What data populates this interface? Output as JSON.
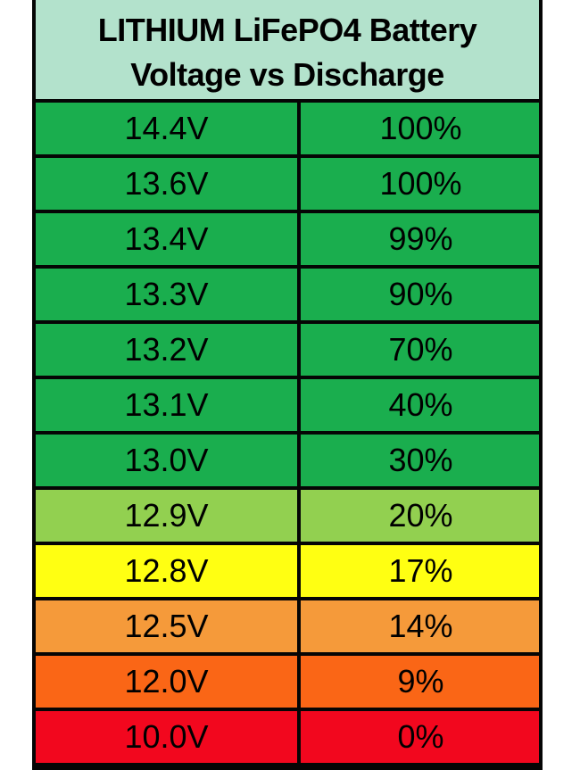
{
  "header": {
    "title_line1": "LITHIUM LiFePO4 Battery",
    "title_line2": "Voltage vs Discharge"
  },
  "colors": {
    "header_bg": "#b3e2cc",
    "dark_green": "#1aae4e",
    "light_green": "#92d050",
    "yellow": "#ffff12",
    "light_orange": "#f59a3a",
    "dark_orange": "#fa6616",
    "red": "#f2071e",
    "border": "#050505"
  },
  "rows": [
    {
      "voltage": "14.4V",
      "charge": "100%",
      "color": "#1aae4e"
    },
    {
      "voltage": "13.6V",
      "charge": "100%",
      "color": "#1aae4e"
    },
    {
      "voltage": "13.4V",
      "charge": "99%",
      "color": "#1aae4e"
    },
    {
      "voltage": "13.3V",
      "charge": "90%",
      "color": "#1aae4e"
    },
    {
      "voltage": "13.2V",
      "charge": "70%",
      "color": "#1aae4e"
    },
    {
      "voltage": "13.1V",
      "charge": "40%",
      "color": "#1aae4e"
    },
    {
      "voltage": "13.0V",
      "charge": "30%",
      "color": "#1aae4e"
    },
    {
      "voltage": "12.9V",
      "charge": "20%",
      "color": "#92d050"
    },
    {
      "voltage": "12.8V",
      "charge": "17%",
      "color": "#ffff12"
    },
    {
      "voltage": "12.5V",
      "charge": "14%",
      "color": "#f59a3a"
    },
    {
      "voltage": "12.0V",
      "charge": "9%",
      "color": "#fa6616"
    },
    {
      "voltage": "10.0V",
      "charge": "0%",
      "color": "#f2071e"
    }
  ]
}
